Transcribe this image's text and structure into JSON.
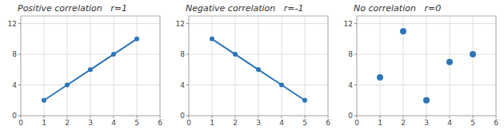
{
  "chart_data": [
    {
      "type": "line",
      "title": "Positive correlation   r=1",
      "x": [
        1,
        2,
        3,
        4,
        5
      ],
      "values": [
        2,
        4,
        6,
        8,
        10
      ],
      "color": "#2E75B6",
      "marker": "circle",
      "xlim": [
        0,
        6
      ],
      "ylim": [
        0,
        13
      ],
      "xticks": [
        0,
        1,
        2,
        3,
        4,
        5,
        6
      ],
      "yticks": [
        0,
        4,
        8,
        12
      ],
      "grid": true
    },
    {
      "type": "line",
      "title": "Negative correlation   r=-1",
      "x": [
        1,
        2,
        3,
        4,
        5
      ],
      "values": [
        10,
        8,
        6,
        4,
        2
      ],
      "color": "#2E75B6",
      "marker": "circle",
      "xlim": [
        0,
        6
      ],
      "ylim": [
        0,
        13
      ],
      "xticks": [
        0,
        1,
        2,
        3,
        4,
        5,
        6
      ],
      "yticks": [
        0,
        4,
        8,
        12
      ],
      "grid": true
    },
    {
      "type": "scatter",
      "title": "No correlation   r=0",
      "x": [
        1,
        2,
        3,
        4,
        5
      ],
      "values": [
        5,
        11,
        2,
        7,
        8
      ],
      "color": "#2E75B6",
      "xlim": [
        0,
        6
      ],
      "ylim": [
        0,
        13
      ],
      "xticks": [
        0,
        1,
        2,
        3,
        4,
        5,
        6
      ],
      "yticks": [
        0,
        4,
        8,
        12
      ],
      "grid": true
    }
  ]
}
